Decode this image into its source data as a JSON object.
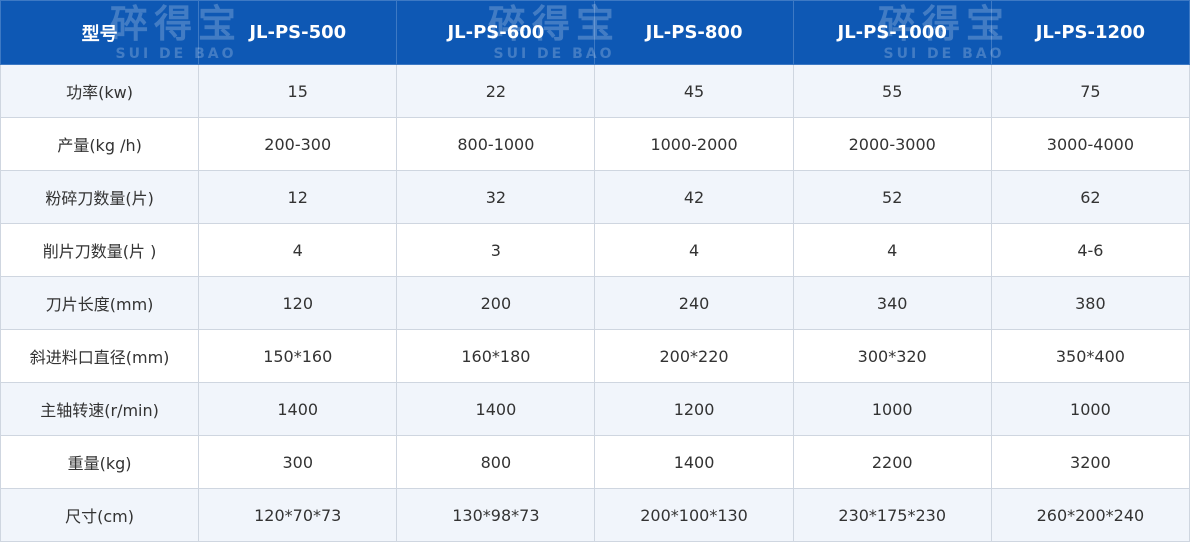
{
  "watermark": {
    "text": "碎得宝",
    "subtext": "SUI DE BAO"
  },
  "table": {
    "header": [
      "型号",
      "JL-PS-500",
      "JL-PS-600",
      "JL-PS-800",
      "JL-PS-1000",
      "JL-PS-1200"
    ],
    "rows": [
      [
        "功率(kw)",
        "15",
        "22",
        "45",
        "55",
        "75"
      ],
      [
        "产量(kg /h)",
        "200-300",
        "800-1000",
        "1000-2000",
        "2000-3000",
        "3000-4000"
      ],
      [
        "粉碎刀数量(片)",
        "12",
        "32",
        "42",
        "52",
        "62"
      ],
      [
        "削片刀数量(片 )",
        "4",
        "3",
        "4",
        "4",
        "4-6"
      ],
      [
        "刀片长度(mm)",
        "120",
        "200",
        "240",
        "340",
        "380"
      ],
      [
        "斜进料口直径(mm)",
        "150*160",
        "160*180",
        "200*220",
        "300*320",
        "350*400"
      ],
      [
        "主轴转速(r/min)",
        "1400",
        "1400",
        "1200",
        "1000",
        "1000"
      ],
      [
        "重量(kg)",
        "300",
        "800",
        "1400",
        "2200",
        "3200"
      ],
      [
        "尺寸(cm)",
        "120*70*73",
        "130*98*73",
        "200*100*130",
        "230*175*230",
        "260*200*240"
      ]
    ]
  }
}
